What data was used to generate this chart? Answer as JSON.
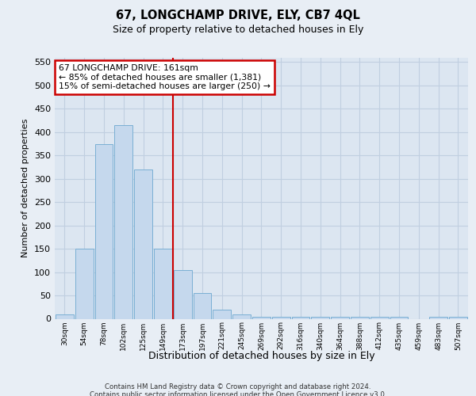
{
  "title_line1": "67, LONGCHAMP DRIVE, ELY, CB7 4QL",
  "title_line2": "Size of property relative to detached houses in Ely",
  "xlabel": "Distribution of detached houses by size in Ely",
  "ylabel": "Number of detached properties",
  "categories": [
    "30sqm",
    "54sqm",
    "78sqm",
    "102sqm",
    "125sqm",
    "149sqm",
    "173sqm",
    "197sqm",
    "221sqm",
    "245sqm",
    "269sqm",
    "292sqm",
    "316sqm",
    "340sqm",
    "364sqm",
    "388sqm",
    "412sqm",
    "435sqm",
    "459sqm",
    "483sqm",
    "507sqm"
  ],
  "values": [
    10,
    150,
    375,
    415,
    320,
    150,
    105,
    55,
    20,
    10,
    5,
    5,
    5,
    5,
    5,
    5,
    5,
    5,
    0,
    5,
    5
  ],
  "bar_color": "#c5d8ed",
  "bar_edge_color": "#7aafd4",
  "vline_x": 5.5,
  "vline_color": "#cc0000",
  "annotation_text": "67 LONGCHAMP DRIVE: 161sqm\n← 85% of detached houses are smaller (1,381)\n15% of semi-detached houses are larger (250) →",
  "annotation_box_color": "#ffffff",
  "annotation_box_edge": "#cc0000",
  "ylim": [
    0,
    560
  ],
  "yticks": [
    0,
    50,
    100,
    150,
    200,
    250,
    300,
    350,
    400,
    450,
    500,
    550
  ],
  "footer": "Contains HM Land Registry data © Crown copyright and database right 2024.\nContains public sector information licensed under the Open Government Licence v3.0.",
  "bg_color": "#e8eef5",
  "plot_bg_color": "#dce6f1",
  "grid_color": "#c0cfe0"
}
